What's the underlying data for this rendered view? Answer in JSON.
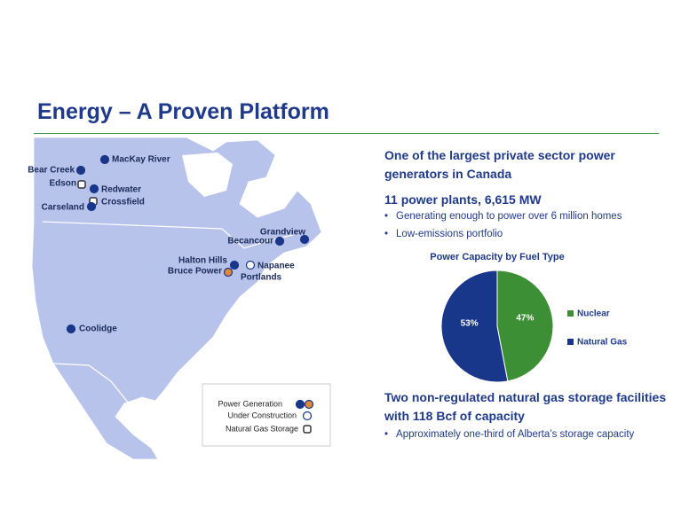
{
  "title": "Energy – A Proven Platform",
  "sections": [
    {
      "heading": "One of the largest private sector power generators in Canada"
    },
    {
      "heading": "11 power plants, 6,615 MW",
      "bullets": [
        "Generating enough to power over 6 million homes",
        "Low-emissions portfolio"
      ]
    },
    {
      "heading": "Two non-regulated natural gas storage facilities with 118 Bcf of capacity",
      "bullets": [
        "Approximately one-third of Alberta’s storage capacity"
      ]
    }
  ],
  "map": {
    "locations": [
      "MacKay River",
      "Bear Creek",
      "Edson",
      "Redwater",
      "Crossfield",
      "Carseland",
      "Grandview",
      "Becancour",
      "Halton Hills",
      "Bruce Power",
      "Napanee",
      "Portlands",
      "Coolidge"
    ],
    "legend": [
      "Power Generation",
      "Under Construction",
      "Natural Gas Storage"
    ]
  },
  "chart_data": {
    "type": "pie",
    "title": "Power Capacity by Fuel Type",
    "categories": [
      "Nuclear",
      "Natural Gas"
    ],
    "values": [
      47,
      53
    ],
    "value_labels": [
      "47%",
      "53%"
    ],
    "colors": [
      "#3d8f35",
      "#18368a"
    ]
  }
}
